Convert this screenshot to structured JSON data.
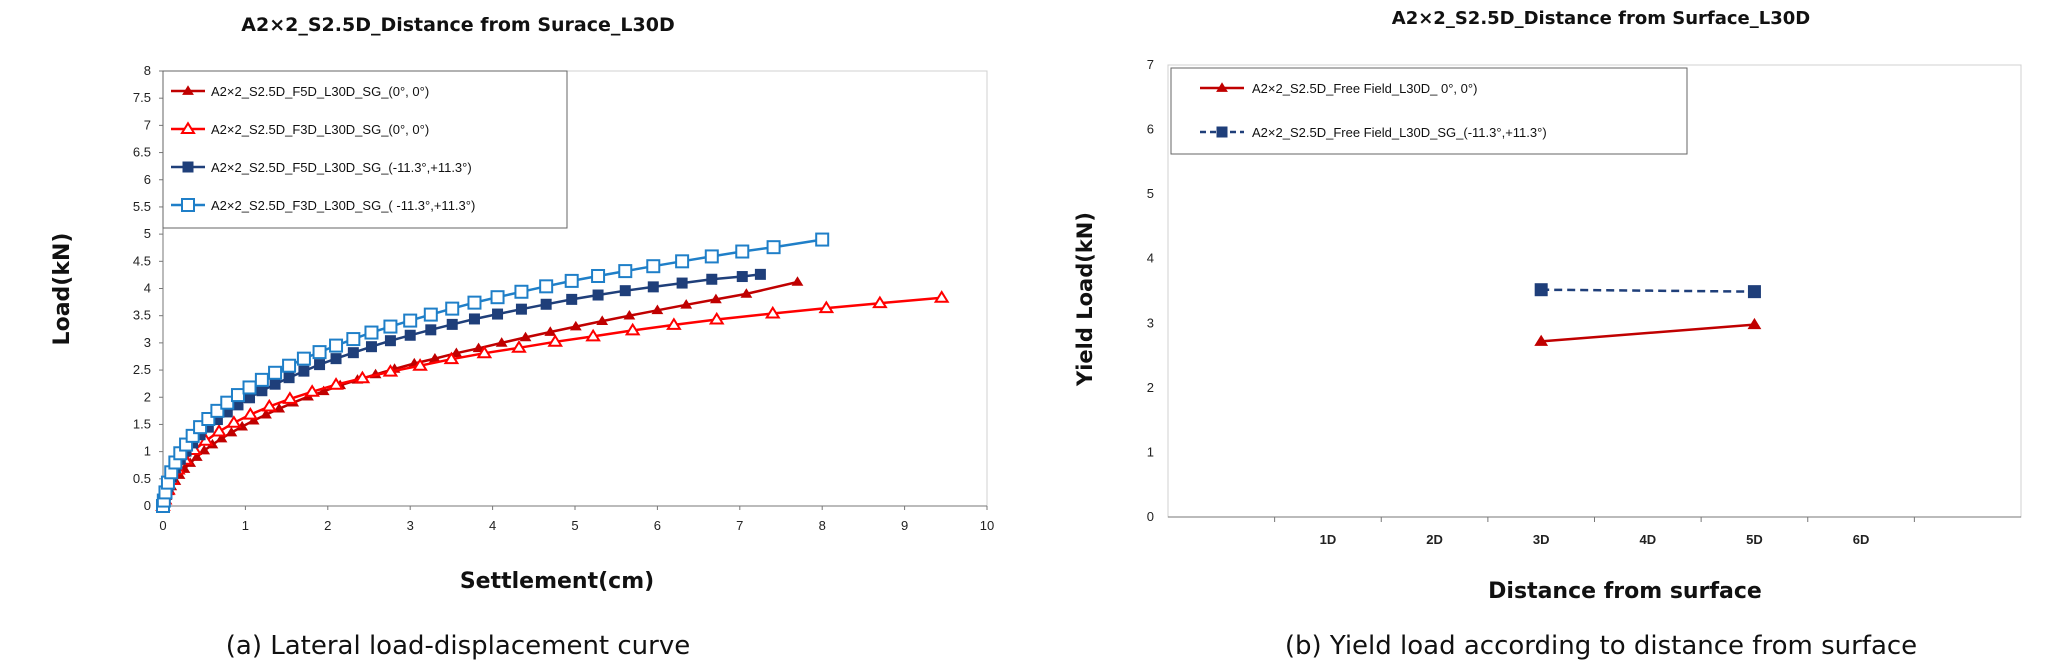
{
  "chart_data": [
    {
      "type": "line",
      "title": "A2×2_S2.5D_Distance from Surace_L30D",
      "xlabel": "Settlement(cm)",
      "ylabel": "Load(kN)",
      "xlim": [
        0,
        10
      ],
      "ylim": [
        0,
        8
      ],
      "x_ticks": [
        "0",
        "1",
        "2",
        "3",
        "4",
        "5",
        "6",
        "7",
        "8",
        "9",
        "10"
      ],
      "y_ticks": [
        "0",
        "0.5",
        "1",
        "1.5",
        "2",
        "2.5",
        "3",
        "3.5",
        "4",
        "4.5",
        "5",
        "5.5",
        "6",
        "6.5",
        "7",
        "7.5",
        "8"
      ],
      "grid": false,
      "legend_position": "top-left",
      "caption": "(a) Lateral load-displacement curve",
      "series": [
        {
          "name": "A2×2_S2.5D_F5D_L30D_SG_(0°, 0°)",
          "color": "#C00000",
          "marker": "filled-triangle",
          "x": [
            0,
            0.01,
            0.02,
            0.04,
            0.07,
            0.1,
            0.15,
            0.2,
            0.26,
            0.33,
            0.41,
            0.5,
            0.6,
            0.71,
            0.83,
            0.96,
            1.1,
            1.25,
            1.41,
            1.58,
            1.76,
            1.95,
            2.15,
            2.36,
            2.58,
            2.81,
            3.05,
            3.3,
            3.56,
            3.83,
            4.11,
            4.4,
            4.7,
            5.01,
            5.33,
            5.66,
            6.0,
            6.35,
            6.71,
            7.08,
            7.7
          ],
          "y": [
            0,
            0.05,
            0.1,
            0.18,
            0.27,
            0.36,
            0.46,
            0.57,
            0.68,
            0.79,
            0.9,
            1.02,
            1.13,
            1.24,
            1.35,
            1.46,
            1.57,
            1.68,
            1.79,
            1.9,
            2.01,
            2.11,
            2.22,
            2.32,
            2.42,
            2.52,
            2.62,
            2.71,
            2.81,
            2.9,
            3.0,
            3.1,
            3.2,
            3.3,
            3.4,
            3.5,
            3.6,
            3.7,
            3.8,
            3.9,
            4.12
          ]
        },
        {
          "name": "A2×2_S2.5D_F3D_L30D_SG_(0°, 0°)",
          "color": "#FF0000",
          "marker": "open-triangle",
          "x": [
            0,
            0.02,
            0.06,
            0.11,
            0.18,
            0.27,
            0.38,
            0.52,
            0.68,
            0.86,
            1.06,
            1.29,
            1.54,
            1.81,
            2.1,
            2.42,
            2.76,
            3.12,
            3.5,
            3.9,
            4.32,
            4.76,
            5.22,
            5.7,
            6.2,
            6.72,
            7.4,
            8.05,
            8.7,
            9.45
          ],
          "y": [
            0,
            0.12,
            0.3,
            0.48,
            0.67,
            0.85,
            1.03,
            1.2,
            1.37,
            1.53,
            1.68,
            1.83,
            1.97,
            2.1,
            2.23,
            2.35,
            2.47,
            2.58,
            2.7,
            2.81,
            2.91,
            3.02,
            3.12,
            3.23,
            3.33,
            3.43,
            3.54,
            3.64,
            3.73,
            3.83
          ]
        },
        {
          "name": "A2×2_S2.5D_F5D_L30D_SG_(-11.3°,+11.3°)",
          "color": "#1F3F7A",
          "marker": "filled-square",
          "x": [
            0,
            0.01,
            0.03,
            0.06,
            0.1,
            0.15,
            0.21,
            0.28,
            0.36,
            0.45,
            0.55,
            0.66,
            0.78,
            0.91,
            1.05,
            1.2,
            1.36,
            1.53,
            1.71,
            1.9,
            2.1,
            2.31,
            2.53,
            2.76,
            3.0,
            3.25,
            3.51,
            3.78,
            4.06,
            4.35,
            4.65,
            4.96,
            5.28,
            5.61,
            5.95,
            6.3,
            6.66,
            7.03,
            7.25
          ],
          "y": [
            0,
            0.08,
            0.2,
            0.36,
            0.53,
            0.7,
            0.86,
            1.01,
            1.16,
            1.31,
            1.45,
            1.59,
            1.73,
            1.86,
            1.99,
            2.12,
            2.24,
            2.36,
            2.48,
            2.6,
            2.71,
            2.82,
            2.93,
            3.04,
            3.14,
            3.24,
            3.34,
            3.44,
            3.53,
            3.62,
            3.71,
            3.8,
            3.88,
            3.96,
            4.03,
            4.1,
            4.17,
            4.22,
            4.26
          ]
        },
        {
          "name": "A2×2_S2.5D_F3D_L30D_SG_( -11.3°,+11.3°)",
          "color": "#1F7FC8",
          "marker": "open-square",
          "x": [
            0,
            0.01,
            0.03,
            0.06,
            0.1,
            0.15,
            0.21,
            0.28,
            0.36,
            0.45,
            0.55,
            0.66,
            0.78,
            0.91,
            1.05,
            1.2,
            1.36,
            1.53,
            1.71,
            1.9,
            2.1,
            2.31,
            2.53,
            2.76,
            3.0,
            3.25,
            3.51,
            3.78,
            4.06,
            4.35,
            4.65,
            4.96,
            5.28,
            5.61,
            5.95,
            6.3,
            6.66,
            7.03,
            7.41,
            8.0
          ],
          "y": [
            0,
            0.1,
            0.25,
            0.43,
            0.62,
            0.8,
            0.97,
            1.13,
            1.29,
            1.45,
            1.6,
            1.75,
            1.9,
            2.04,
            2.18,
            2.32,
            2.45,
            2.58,
            2.71,
            2.83,
            2.95,
            3.07,
            3.19,
            3.3,
            3.41,
            3.52,
            3.63,
            3.74,
            3.84,
            3.94,
            4.04,
            4.14,
            4.23,
            4.32,
            4.41,
            4.5,
            4.59,
            4.68,
            4.76,
            4.9
          ]
        }
      ]
    },
    {
      "type": "line",
      "title": "A2×2_S2.5D_Distance from Surface_L30D",
      "xlabel": "Distance from surface",
      "ylabel": "Yield  Load(kN)",
      "categories": [
        "",
        "1D",
        "2D",
        "3D",
        "4D",
        "5D",
        "6D",
        ""
      ],
      "ylim": [
        0,
        7
      ],
      "y_ticks": [
        "0",
        "1",
        "2",
        "3",
        "4",
        "5",
        "6",
        "7"
      ],
      "grid": false,
      "legend_position": "top-left",
      "caption": "(b) Yield load according to distance from surface",
      "series": [
        {
          "name": "A2×2_S2.5D_Free Field_L30D_ 0°, 0°)",
          "color": "#C00000",
          "marker": "filled-triangle",
          "line": "solid",
          "x": [
            "3D",
            "5D"
          ],
          "values": [
            2.72,
            2.98
          ]
        },
        {
          "name": "A2×2_S2.5D_Free Field_L30D_SG_(-11.3°,+11.3°)",
          "color": "#1F3F7A",
          "marker": "filled-square",
          "line": "dashed",
          "x": [
            "3D",
            "5D"
          ],
          "values": [
            3.52,
            3.49
          ]
        }
      ]
    }
  ]
}
